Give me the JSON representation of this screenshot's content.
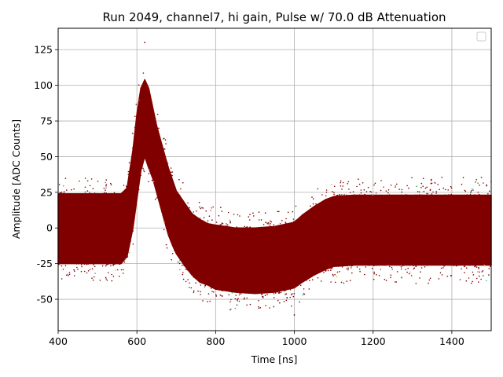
{
  "chart_data": {
    "type": "scatter",
    "title": "Run 2049, channel7, hi gain, Pulse w/ 70.0 dB Attenuation",
    "xlabel": "Time [ns]",
    "ylabel": "Amplitude [ADC Counts]",
    "xlim": [
      400,
      1500
    ],
    "ylim": [
      -72,
      140
    ],
    "xticks": [
      400,
      600,
      800,
      1000,
      1200,
      1400
    ],
    "yticks": [
      -50,
      -25,
      0,
      25,
      50,
      75,
      100,
      125
    ],
    "grid": true,
    "legend": {
      "placement": "top-right",
      "entries": []
    },
    "band_color": "#800000",
    "stray_colors": [
      "#1f77b4",
      "#ff7f0e",
      "#2ca02c",
      "#d62728",
      "#9467bd",
      "#bcbd22",
      "#17becf"
    ],
    "band": {
      "x": [
        400,
        560,
        575,
        590,
        600,
        610,
        620,
        630,
        640,
        650,
        660,
        670,
        680,
        690,
        700,
        720,
        740,
        760,
        780,
        800,
        850,
        900,
        950,
        1000,
        1020,
        1050,
        1080,
        1100,
        1150,
        1200,
        1300,
        1400,
        1500
      ],
      "upper": [
        24,
        24,
        28,
        55,
        80,
        98,
        104,
        98,
        85,
        72,
        62,
        52,
        42,
        34,
        26,
        18,
        10,
        6,
        3,
        2,
        0,
        0,
        1,
        4,
        9,
        15,
        20,
        22,
        23,
        23,
        23,
        23,
        23
      ],
      "lower": [
        -25,
        -25,
        -20,
        0,
        20,
        40,
        50,
        42,
        35,
        25,
        15,
        5,
        -5,
        -12,
        -18,
        -26,
        -33,
        -38,
        -40,
        -43,
        -45,
        -46,
        -45,
        -42,
        -38,
        -33,
        -29,
        -27,
        -26,
        -26,
        -26,
        -26,
        -26
      ]
    },
    "outlier_range": [
      -62,
      130
    ]
  }
}
